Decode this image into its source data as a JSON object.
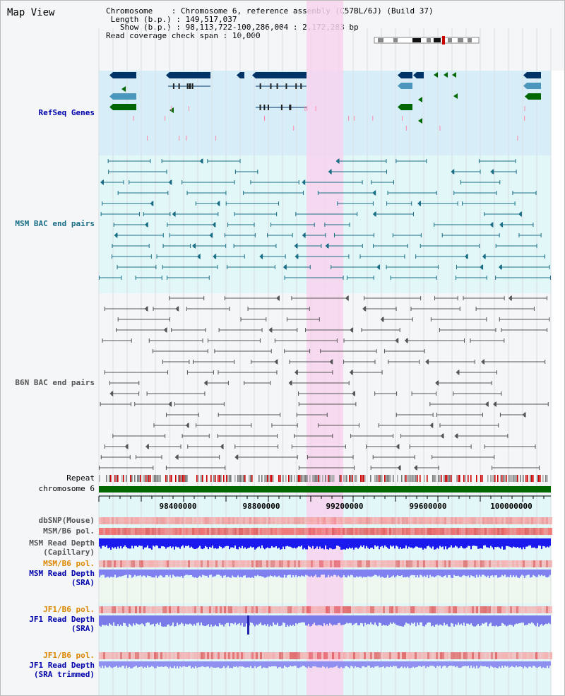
{
  "title": "Map View",
  "header": {
    "chromosome_label": "Chromosome",
    "chromosome_value": "Chromosome 6, reference assembly (C57BL/6J) (Build 37)",
    "length_label": "Length (b.p.)",
    "length_value": "149,517,037",
    "show_label": "Show (b.p.)",
    "show_value": "98,113,722-100,286,004 : 2,172,283 bp",
    "span_label": "Read coverage check span",
    "span_value": "10,000"
  },
  "tracks": {
    "refseq": "RefSeq Genes",
    "msm_bac": "MSM BAC end pairs",
    "b6n_bac": "B6N BAC end pairs",
    "repeat": "Repeat",
    "chromosome": "chromosome 6",
    "dbsnp": "dbSNP(Mouse)",
    "msm_b6_pol": "MSM/B6 pol.",
    "msm_depth_cap_1": "MSM Read Depth",
    "msm_depth_cap_2": "(Capillary)",
    "msm_b6_pol_2": "MSM/B6 pol.",
    "msm_depth_sra_1": "MSM Read Depth",
    "msm_depth_sra_2": "(SRA)",
    "jf1_b6_pol": "JF1/B6 pol.",
    "jf1_depth_1": "JF1 Read Depth",
    "jf1_depth_2": "(SRA)",
    "jf1_b6_pol_2": "JF1/B6 pol.",
    "jf1_depth_trim_1": "JF1 Read Depth",
    "jf1_depth_trim_2": "(SRA trimmed)"
  },
  "axis": {
    "ticks": [
      "98400000",
      "98800000",
      "99200000",
      "99600000",
      "100000000"
    ]
  },
  "colors": {
    "refseq_bg": "#d7eef8",
    "msm_bg": "#e2f8f8",
    "b6n_bg": "#f4f6f8",
    "highlight": "#f7d4ef",
    "gene_navy": "#003366",
    "gene_blue": "#4a96bc",
    "gene_green": "#006600",
    "msm_line": "#1a6e86",
    "b6n_line": "#555555",
    "label_blue": "#0000aa",
    "label_orange": "#dd8800"
  }
}
